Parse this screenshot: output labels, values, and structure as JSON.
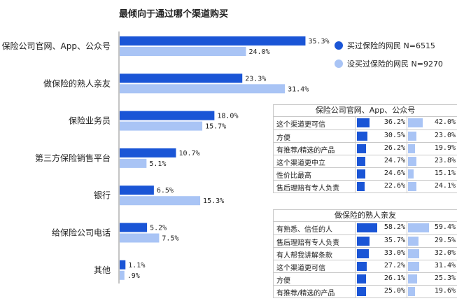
{
  "colors": {
    "buyer": "#1a55d6",
    "nonbuyer": "#a9c4f5",
    "axis": "#888888"
  },
  "chart_data": {
    "type": "bar",
    "orientation": "horizontal",
    "title": "最倾向于通过哪个渠道购买",
    "categories": [
      "保险公司官网、App、公众号",
      "做保险的熟人亲友",
      "保险业务员",
      "第三方保险销售平台",
      "银行",
      "给保险公司电话",
      "其他"
    ],
    "series": [
      {
        "name": "买过保险的网民 N=6515",
        "values": [
          35.3,
          23.3,
          18.0,
          10.7,
          6.5,
          5.2,
          1.1
        ],
        "labels": [
          "35.3%",
          "23.3%",
          "18.0%",
          "10.7%",
          "6.5%",
          "5.2%",
          "1.1%"
        ]
      },
      {
        "name": "没买过保险的网民 N=9270",
        "values": [
          24.0,
          31.4,
          15.7,
          5.1,
          15.3,
          7.5,
          0.9
        ],
        "labels": [
          "24.0%",
          "31.4%",
          "15.7%",
          "5.1%",
          "15.3%",
          "7.5%",
          ".9%"
        ]
      }
    ],
    "legend_position": "top-right",
    "panels": [
      {
        "title": "保险公司官网、App、公众号",
        "rows": [
          {
            "label": "这个渠道更可信",
            "a": 36.2,
            "a_label": "36.2%",
            "b": 42.0,
            "b_label": "42.0%"
          },
          {
            "label": "方便",
            "a": 30.5,
            "a_label": "30.5%",
            "b": 23.0,
            "b_label": "23.0%"
          },
          {
            "label": "有推荐/精选的产品",
            "a": 26.2,
            "a_label": "26.2%",
            "b": 19.9,
            "b_label": "19.9%"
          },
          {
            "label": "这个渠道更中立",
            "a": 24.7,
            "a_label": "24.7%",
            "b": 23.8,
            "b_label": "23.8%"
          },
          {
            "label": "性价比最高",
            "a": 24.6,
            "a_label": "24.6%",
            "b": 15.1,
            "b_label": "15.1%"
          },
          {
            "label": "售后理赔有专人负责",
            "a": 22.6,
            "a_label": "22.6%",
            "b": 24.1,
            "b_label": "24.1%"
          }
        ]
      },
      {
        "title": "做保险的熟人亲友",
        "rows": [
          {
            "label": "有熟悉、信任的人",
            "a": 58.2,
            "a_label": "58.2%",
            "b": 59.4,
            "b_label": "59.4%"
          },
          {
            "label": "售后理赔有专人负责",
            "a": 35.7,
            "a_label": "35.7%",
            "b": 29.5,
            "b_label": "29.5%"
          },
          {
            "label": "有人帮我讲解条款",
            "a": 33.0,
            "a_label": "33.0%",
            "b": 32.0,
            "b_label": "32.0%"
          },
          {
            "label": "这个渠道更可信",
            "a": 27.2,
            "a_label": "27.2%",
            "b": 31.4,
            "b_label": "31.4%"
          },
          {
            "label": "方便",
            "a": 26.1,
            "a_label": "26.1%",
            "b": 25.3,
            "b_label": "25.3%"
          },
          {
            "label": "有推荐/精选的产品",
            "a": 25.0,
            "a_label": "25.0%",
            "b": 19.6,
            "b_label": "19.6%"
          }
        ]
      }
    ]
  }
}
